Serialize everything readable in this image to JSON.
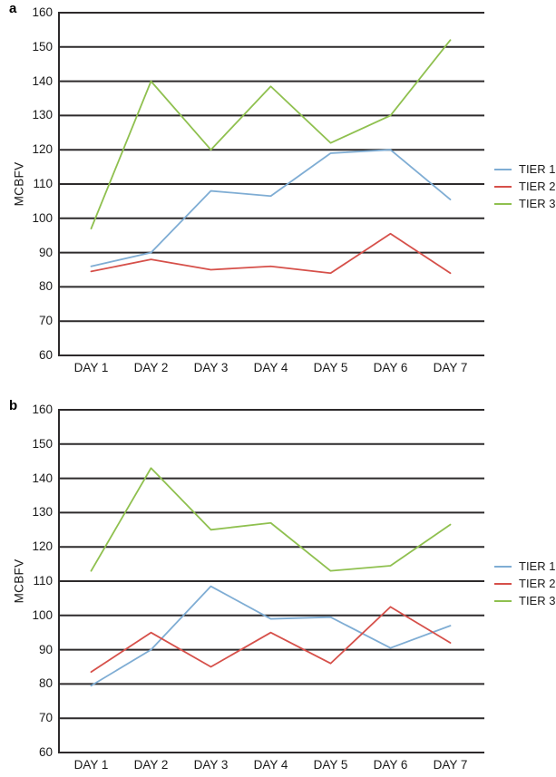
{
  "figure": {
    "ylabel": "MCBFV",
    "panels": [
      {
        "label": "a"
      },
      {
        "label": "b"
      }
    ]
  },
  "style": {
    "grid_color": "#2d2a2b",
    "text_color": "#1a1a1a",
    "tier1_color": "#7fadd4",
    "tier2_color": "#d6504a",
    "tier3_color": "#8fc04f"
  },
  "chart_data": [
    {
      "type": "line",
      "panel_label": "a",
      "title": "",
      "xlabel": "",
      "ylabel": "MCBFV",
      "ylim": [
        60,
        160
      ],
      "ytick_step": 10,
      "grid": "horizontal gridlines on, every 10 units",
      "legend_position": "right-center",
      "legend_entries": [
        "TIER 1",
        "TIER 2",
        "TIER 3"
      ],
      "categories": [
        "DAY 1",
        "DAY 2",
        "DAY 3",
        "DAY 4",
        "DAY 5",
        "DAY 6",
        "DAY 7"
      ],
      "series": [
        {
          "name": "TIER 1",
          "color": "#7fadd4",
          "values": [
            86,
            90,
            108,
            106.5,
            119,
            120,
            105.5
          ]
        },
        {
          "name": "TIER 2",
          "color": "#d6504a",
          "values": [
            84.5,
            88,
            85,
            86,
            84,
            95.5,
            84
          ]
        },
        {
          "name": "TIER 3",
          "color": "#8fc04f",
          "values": [
            97,
            140,
            120,
            138.5,
            122,
            130,
            152
          ]
        }
      ]
    },
    {
      "type": "line",
      "panel_label": "b",
      "title": "",
      "xlabel": "",
      "ylabel": "MCBFV",
      "ylim": [
        60,
        160
      ],
      "ytick_step": 10,
      "grid": "horizontal gridlines on, every 10 units",
      "legend_position": "right-center",
      "legend_entries": [
        "TIER 1",
        "TIER 2",
        "TIER 3"
      ],
      "categories": [
        "DAY 1",
        "DAY 2",
        "DAY 3",
        "DAY 4",
        "DAY 5",
        "DAY 6",
        "DAY 7"
      ],
      "series": [
        {
          "name": "TIER 1",
          "color": "#7fadd4",
          "values": [
            79.5,
            90,
            108.5,
            99,
            99.5,
            90.5,
            97
          ]
        },
        {
          "name": "TIER 2",
          "color": "#d6504a",
          "values": [
            83.5,
            95,
            85,
            95,
            86,
            102.5,
            92
          ]
        },
        {
          "name": "TIER 3",
          "color": "#8fc04f",
          "values": [
            113,
            143,
            125,
            127,
            113,
            114.5,
            126.5
          ]
        }
      ]
    }
  ]
}
